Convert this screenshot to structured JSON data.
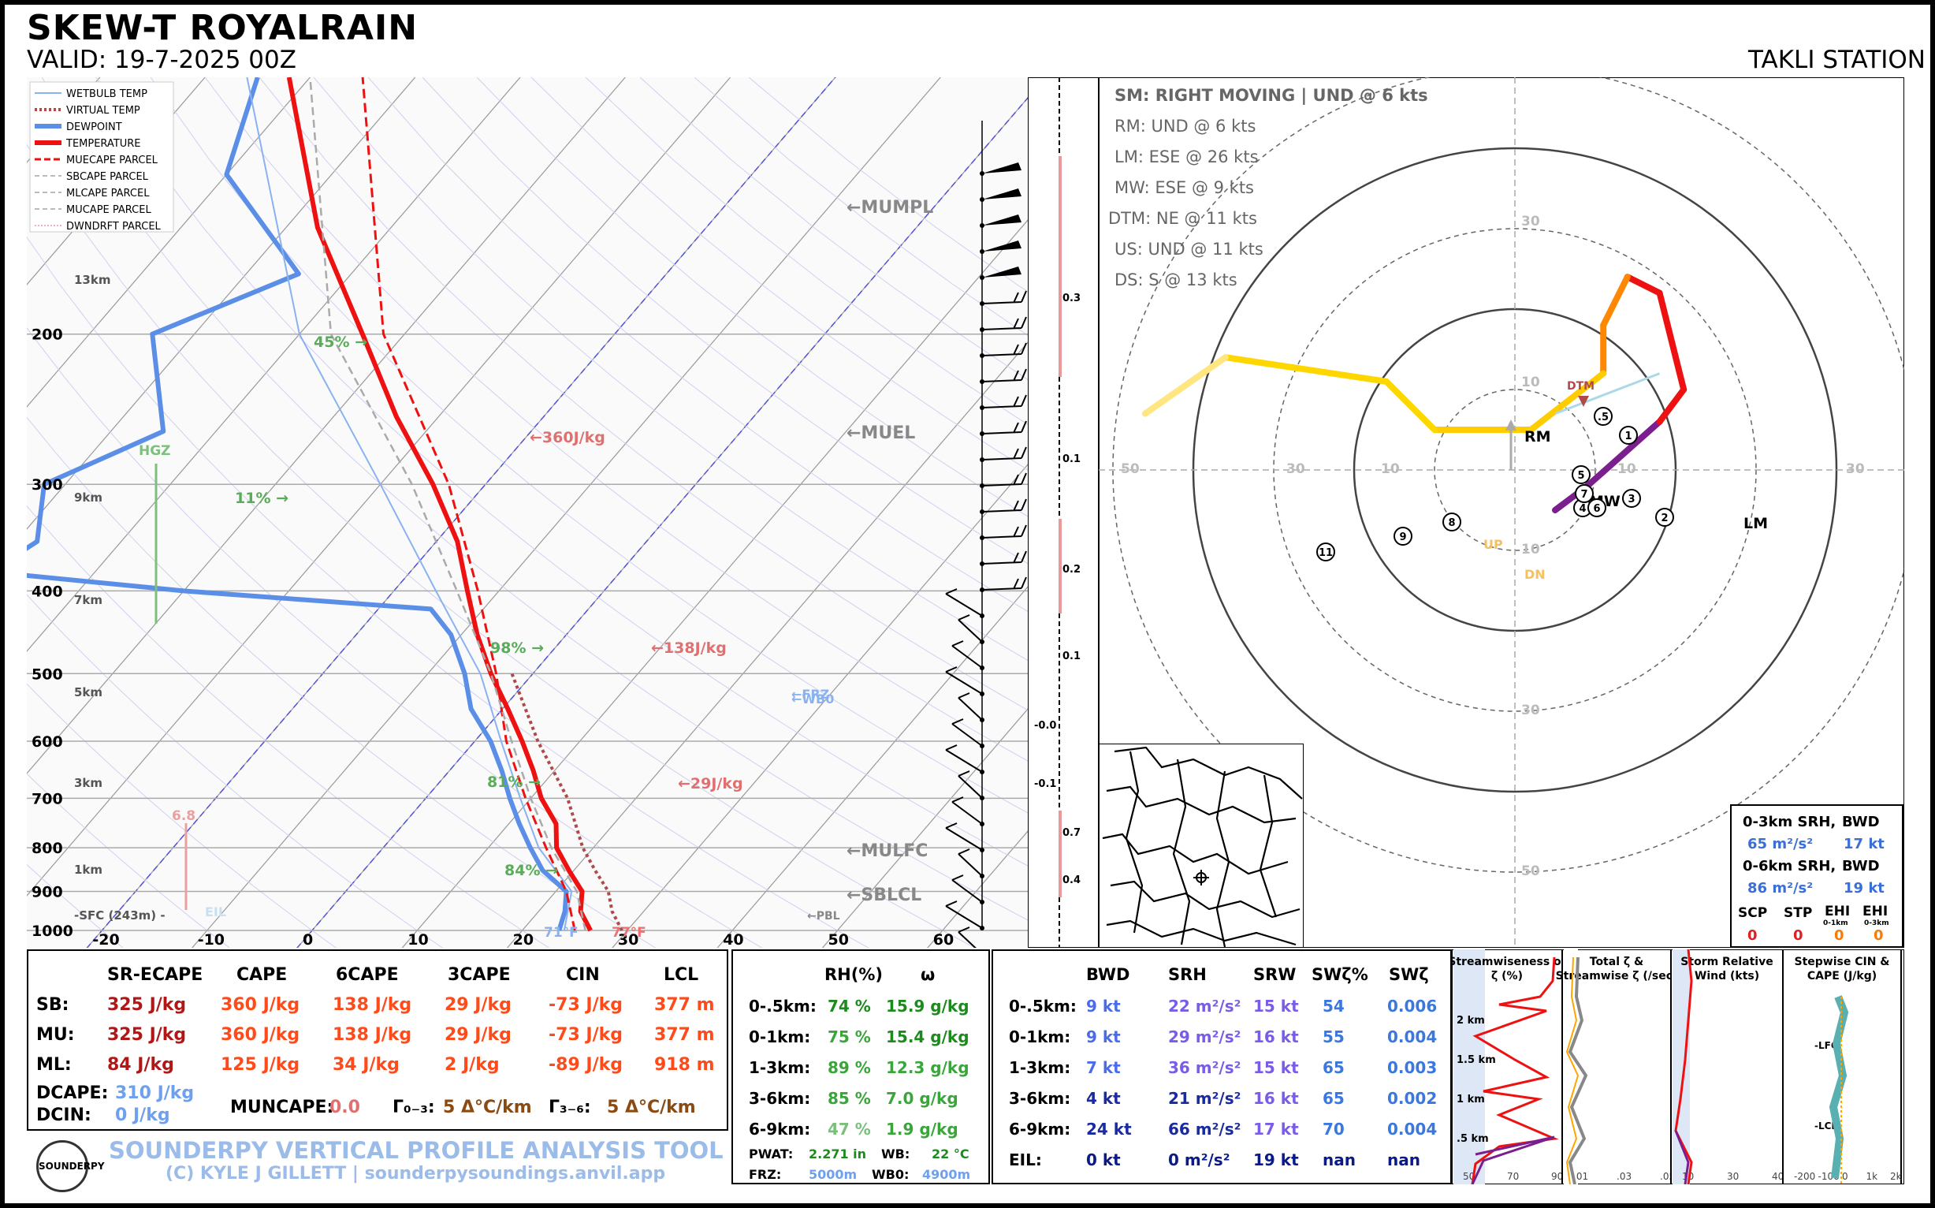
{
  "header": {
    "title": "SKEW-T ROYALRAIN",
    "valid": "VALID: 19-7-2025 00Z",
    "station": "TAKLI STATION"
  },
  "legend": [
    "WETBULB TEMP",
    "VIRTUAL TEMP",
    "DEWPOINT",
    "TEMPERATURE",
    "MUECAPE PARCEL",
    "SBCAPE PARCEL",
    "MLCAPE PARCEL",
    "MUCAPE PARCEL",
    "DWNDRFT PARCEL"
  ],
  "colors": {
    "temperature": "#ee1111",
    "dewpoint": "#5b8ee6",
    "wetbulb": "#8ab2f0",
    "virtual": "#b04a4a",
    "parcel": "#aaaaaa"
  },
  "chart_data": [
    {
      "type": "line",
      "title": "SKEW-T",
      "pressure_ticks": [
        200,
        300,
        400,
        500,
        600,
        700,
        800,
        900,
        1000
      ],
      "temp_ticks": [
        -20,
        -10,
        0,
        10,
        20,
        30,
        40,
        50,
        60
      ],
      "height_labels": [
        "13km",
        "9km",
        "7km",
        "5km",
        "3km",
        "1km",
        "-SFC (243m) -"
      ],
      "series": [
        {
          "name": "TEMPERATURE",
          "points": [
            [
              1000,
              26.5
            ],
            [
              950,
              24
            ],
            [
              900,
              22.5
            ],
            [
              850,
              19.5
            ],
            [
              800,
              16.5
            ],
            [
              750,
              14.5
            ],
            [
              700,
              11
            ],
            [
              650,
              8
            ],
            [
              600,
              4.5
            ],
            [
              550,
              0.5
            ],
            [
              500,
              -4
            ],
            [
              450,
              -8.5
            ],
            [
              400,
              -13
            ],
            [
              350,
              -18
            ],
            [
              300,
              -25
            ],
            [
              250,
              -34
            ],
            [
              200,
              -44
            ],
            [
              150,
              -57
            ],
            [
              100,
              -72
            ]
          ]
        },
        {
          "name": "DEWPOINT",
          "points": [
            [
              1000,
              23.5
            ],
            [
              950,
              22.5
            ],
            [
              900,
              21
            ],
            [
              850,
              17
            ],
            [
              800,
              14
            ],
            [
              750,
              11
            ],
            [
              700,
              8
            ],
            [
              650,
              5
            ],
            [
              600,
              1.5
            ],
            [
              550,
              -3
            ],
            [
              500,
              -6.5
            ],
            [
              450,
              -11
            ],
            [
              420,
              -15
            ],
            [
              400,
              -40
            ],
            [
              380,
              -60
            ],
            [
              350,
              -58
            ],
            [
              300,
              -62
            ],
            [
              260,
              -55
            ],
            [
              200,
              -64
            ],
            [
              170,
              -55
            ],
            [
              130,
              -70
            ],
            [
              100,
              -75
            ]
          ]
        },
        {
          "name": "WETBULB TEMP",
          "points": [
            [
              1000,
              24
            ],
            [
              900,
              21.5
            ],
            [
              800,
              14.8
            ],
            [
              700,
              9
            ],
            [
              600,
              2.5
            ],
            [
              500,
              -5
            ],
            [
              400,
              -16
            ],
            [
              300,
              -30
            ],
            [
              200,
              -50
            ],
            [
              100,
              -76
            ]
          ]
        },
        {
          "name": "VIRTUAL TEMP",
          "points": [
            [
              1000,
              29.5
            ],
            [
              950,
              27
            ],
            [
              900,
              25
            ],
            [
              850,
              22
            ],
            [
              800,
              19
            ],
            [
              700,
              13.5
            ],
            [
              600,
              6
            ],
            [
              500,
              -2
            ]
          ]
        },
        {
          "name": "MUECAPE PARCEL",
          "points": [
            [
              1000,
              25
            ],
            [
              900,
              21
            ],
            [
              800,
              15.5
            ],
            [
              700,
              9.5
            ],
            [
              600,
              3
            ],
            [
              500,
              -3.5
            ],
            [
              400,
              -12
            ],
            [
              300,
              -23.5
            ],
            [
              200,
              -42
            ],
            [
              100,
              -65
            ]
          ]
        }
      ],
      "annotations": [
        "←MUMPL",
        "←MUEL",
        "←MULFC",
        "←SBLCL",
        "←FRZ",
        "←WB0",
        "←PBL",
        "45% →",
        "11% →",
        "98% →",
        "81% →",
        "84% →",
        "←360J/kg",
        "←138J/kg",
        "←29J/kg",
        "HGZ",
        "6.8",
        "EIL",
        "71°F",
        "77°F"
      ],
      "omega_labels": [
        "0.3",
        "0.1",
        "0.2",
        "0.1",
        "-0.0",
        "-0.1",
        "0.7",
        "0.4"
      ]
    },
    {
      "type": "line",
      "title": "Hodograph",
      "header_lines": [
        "SM: RIGHT MOVING | UND @ 6 kts",
        "RM: UND @ 6 kts",
        "LM: ESE @ 26 kts",
        "MW: ESE @ 9 kts",
        "DTM: NE @ 11 kts",
        "US: UND @ 11 kts",
        "DS: S @ 13 kts"
      ],
      "rings": [
        10,
        20,
        30,
        40,
        50
      ],
      "ring_labels": [
        "10",
        "30",
        "50"
      ],
      "markers": [
        "RM",
        "LM",
        "MW",
        "DTM",
        "UP",
        "DN"
      ],
      "points_kt": [
        [
          5,
          5
        ],
        [
          9,
          2
        ],
        [
          18,
          -6
        ],
        [
          21,
          -10
        ],
        [
          18,
          -22
        ],
        [
          14,
          -24
        ],
        [
          11,
          -18
        ],
        [
          11,
          -12
        ],
        [
          2,
          -5
        ],
        [
          -10,
          -5
        ],
        [
          -16,
          -11
        ],
        [
          -36,
          -14
        ],
        [
          -46,
          -7
        ]
      ],
      "height_labels": [
        ".5",
        "1",
        "2",
        "3",
        "4",
        "5",
        "6",
        "7",
        "8",
        "9",
        "11"
      ]
    }
  ],
  "srh_box": {
    "r1_label": "0-3km SRH,",
    "r1_bwd_label": "BWD",
    "r1_val": "65 m²/s²",
    "r1_bwd": "17 kt",
    "r2_label": "0-6km SRH,",
    "r2_bwd_label": "BWD",
    "r2_val": "86 m²/s²",
    "r2_bwd": "19 kt",
    "idx_labels": [
      "SCP",
      "STP",
      "EHI",
      "EHI"
    ],
    "idx_sub": [
      "",
      "",
      "0-1km",
      "0-3km"
    ],
    "idx_vals": [
      "0",
      "0",
      "0",
      "0"
    ]
  },
  "thermo": {
    "headers": [
      "SR-ECAPE",
      "CAPE",
      "6CAPE",
      "3CAPE",
      "CIN",
      "LCL"
    ],
    "rows": [
      {
        "label": "SB:",
        "vals": [
          "325 J/kg",
          "360 J/kg",
          "138 J/kg",
          "29 J/kg",
          "-73 J/kg",
          "377 m"
        ]
      },
      {
        "label": "MU:",
        "vals": [
          "325 J/kg",
          "360 J/kg",
          "138 J/kg",
          "29 J/kg",
          "-73 J/kg",
          "377 m"
        ]
      },
      {
        "label": "ML:",
        "vals": [
          "84 J/kg",
          "125 J/kg",
          "34 J/kg",
          "2 J/kg",
          "-89 J/kg",
          "918 m"
        ]
      }
    ],
    "dcape_label": "DCAPE:",
    "dcape": "310 J/kg",
    "dcin_label": "DCIN:",
    "dcin": "0 J/kg",
    "muncape_label": "MUNCAPE:",
    "muncape": "0.0",
    "g03_label": "Γ₀₋₃:",
    "g03": "5 Δ°C/km",
    "g36_label": "Γ₃₋₆:",
    "g36": "5 Δ°C/km"
  },
  "moist": {
    "headers": [
      "RH(%)",
      "ω"
    ],
    "rows": [
      {
        "label": "0-.5km:",
        "rh": "74 %",
        "w": "15.9 g/kg"
      },
      {
        "label": "0-1km:",
        "rh": "75 %",
        "w": "15.4 g/kg"
      },
      {
        "label": "1-3km:",
        "rh": "89 %",
        "w": "12.3 g/kg"
      },
      {
        "label": "3-6km:",
        "rh": "85 %",
        "w": "7.0 g/kg"
      },
      {
        "label": "6-9km:",
        "rh": "47 %",
        "w": "1.9 g/kg"
      }
    ],
    "pwat_label": "PWAT:",
    "pwat": "2.271 in",
    "wb_label": "WB:",
    "wb": "22 °C",
    "frz_label": "FRZ:",
    "frz": "5000m",
    "wb0_label": "WB0:",
    "wb0": "4900m"
  },
  "kin": {
    "headers": [
      "BWD",
      "SRH",
      "SRW",
      "SWζ%",
      "SWζ"
    ],
    "rows": [
      {
        "label": "0-.5km:",
        "vals": [
          "9 kt",
          "22 m²/s²",
          "15 kt",
          "54",
          "0.006"
        ]
      },
      {
        "label": "0-1km:",
        "vals": [
          "9 kt",
          "29 m²/s²",
          "16 kt",
          "55",
          "0.004"
        ]
      },
      {
        "label": "1-3km:",
        "vals": [
          "7 kt",
          "36 m²/s²",
          "15 kt",
          "65",
          "0.003"
        ]
      },
      {
        "label": "3-6km:",
        "vals": [
          "4 kt",
          "21 m²/s²",
          "16 kt",
          "65",
          "0.002"
        ]
      },
      {
        "label": "6-9km:",
        "vals": [
          "24 kt",
          "66 m²/s²",
          "17 kt",
          "70",
          "0.004"
        ]
      },
      {
        "label": "EIL:",
        "vals": [
          "0 kt",
          "0 m²/s²",
          "19 kt",
          "nan",
          "nan"
        ]
      }
    ]
  },
  "mini_panels": {
    "p1_title": "Streamwiseness of ζ (%)",
    "p1_ticks": [
      "50",
      "70",
      "90"
    ],
    "p1_heights": [
      "2 km",
      "1.5 km",
      "1 km",
      ".5 km"
    ],
    "p2_title": "Total ζ & Streamwise ζ (/sec)",
    "p2_ticks": [
      ".01",
      ".03",
      ".05"
    ],
    "p3_title": "Storm Relative Wind (kts)",
    "p3_ticks": [
      "10",
      "30",
      "40"
    ],
    "p4_title": "Stepwise CIN & CAPE (J/kg)",
    "p4_ticks": [
      "-200",
      "-100",
      "0",
      "1k",
      "2k"
    ],
    "p4_labels": [
      "-LFC",
      "-LCL"
    ]
  },
  "footer": {
    "line1": "SOUNDERPY VERTICAL PROFILE ANALYSIS TOOL",
    "line2": "(C) KYLE J GILLETT | sounderpysoundings.anvil.app",
    "logo": "SOUNDERPY"
  }
}
